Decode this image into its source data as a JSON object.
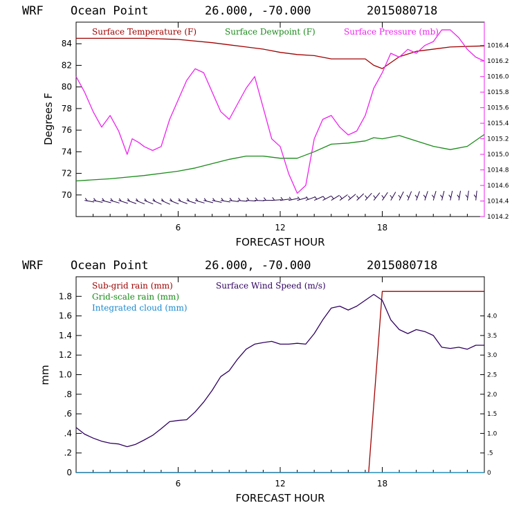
{
  "chart_data": [
    {
      "type": "line",
      "header": {
        "model": "WRF",
        "location": "Ocean Point",
        "coords": "26.000, -70.000",
        "run": "2015080718"
      },
      "xlabel": "FORECAST HOUR",
      "ylabel": "Degrees F",
      "xlim": [
        0,
        24
      ],
      "ylim": [
        68,
        86
      ],
      "y2lim": [
        1014.2,
        1016.7
      ],
      "x_ticks": [
        "6",
        "12",
        "18"
      ],
      "x_tick_values": [
        6,
        12,
        18
      ],
      "y_ticks": [
        "84",
        "82",
        "80",
        "78",
        "76",
        "74",
        "72",
        "70"
      ],
      "y_tick_values": [
        84,
        82,
        80,
        78,
        76,
        74,
        72,
        70
      ],
      "y2_ticks": [
        "1016.4",
        "1016.2",
        "1016.0",
        "1015.8",
        "1015.6",
        "1015.4",
        "1015.2",
        "1015.0",
        "1014.8",
        "1014.6",
        "1014.4",
        "1014.2"
      ],
      "y2_tick_values": [
        1016.4,
        1016.2,
        1016.0,
        1015.8,
        1015.6,
        1015.4,
        1015.2,
        1015.0,
        1014.8,
        1014.6,
        1014.4,
        1014.2
      ],
      "legend": [
        "Surface Temperature (F)",
        "Surface Dewpoint (F)",
        "Surface Pressure (mb)"
      ],
      "colors": {
        "temperature": "#a00000",
        "dewpoint": "#1a8a1a",
        "pressure": "#ee22ee",
        "barbs": "#20004a"
      },
      "series": [
        {
          "name": "Surface Temperature (F)",
          "axis": "left",
          "x": [
            0,
            2,
            4,
            6,
            8,
            9,
            10,
            11,
            12,
            13,
            14,
            15,
            16,
            17,
            17.5,
            18,
            19,
            20,
            22,
            24
          ],
          "values": [
            84.5,
            84.5,
            84.5,
            84.4,
            84.1,
            83.9,
            83.7,
            83.5,
            83.2,
            83.0,
            82.9,
            82.6,
            82.6,
            82.6,
            82.0,
            81.7,
            82.8,
            83.3,
            83.7,
            83.8
          ]
        },
        {
          "name": "Surface Dewpoint (F)",
          "axis": "left",
          "x": [
            0,
            1,
            2,
            4,
            6,
            7,
            8,
            9,
            10,
            11,
            12,
            13,
            14,
            15,
            16,
            17,
            17.5,
            18,
            19,
            20,
            21,
            22,
            23,
            24
          ],
          "values": [
            71.3,
            71.4,
            71.5,
            71.8,
            72.2,
            72.5,
            72.9,
            73.3,
            73.6,
            73.6,
            73.4,
            73.4,
            74.0,
            74.7,
            74.8,
            75.0,
            75.3,
            75.2,
            75.5,
            75.0,
            74.5,
            74.2,
            74.5,
            75.6
          ]
        },
        {
          "name": "Surface Pressure (mb)",
          "axis": "right",
          "x": [
            0,
            0.5,
            1,
            1.5,
            2,
            2.5,
            3,
            3.3,
            3.7,
            4,
            4.5,
            5,
            5.5,
            6,
            6.5,
            7,
            7.5,
            8,
            8.5,
            9,
            9.5,
            10,
            10.5,
            11,
            11.5,
            12,
            12.5,
            13,
            13.5,
            14,
            14.5,
            15,
            15.5,
            16,
            16.5,
            17,
            17.5,
            18,
            18.5,
            19,
            19.5,
            20,
            20.5,
            21,
            21.5,
            22,
            22.5,
            23,
            23.5,
            24
          ],
          "values": [
            1016.0,
            1015.8,
            1015.55,
            1015.35,
            1015.5,
            1015.3,
            1015.0,
            1015.2,
            1015.15,
            1015.1,
            1015.05,
            1015.1,
            1015.45,
            1015.7,
            1015.95,
            1016.1,
            1016.05,
            1015.8,
            1015.55,
            1015.45,
            1015.65,
            1015.85,
            1016.0,
            1015.6,
            1015.2,
            1015.1,
            1014.75,
            1014.5,
            1014.6,
            1015.2,
            1015.45,
            1015.5,
            1015.35,
            1015.25,
            1015.3,
            1015.5,
            1015.85,
            1016.05,
            1016.3,
            1016.25,
            1016.35,
            1016.3,
            1016.4,
            1016.45,
            1016.6,
            1016.6,
            1016.5,
            1016.35,
            1016.25,
            1016.2
          ]
        }
      ],
      "wind_barbs": {
        "start_hour": 0.5,
        "step_hours": 0.5,
        "level_f": 69.5,
        "angles_deg": [
          10,
          12,
          14,
          16,
          18,
          20,
          22,
          22,
          24,
          24,
          22,
          20,
          18,
          16,
          14,
          12,
          10,
          8,
          6,
          4,
          2,
          0,
          -4,
          -8,
          -12,
          -16,
          -20,
          -24,
          -28,
          -32,
          -36,
          -40,
          -44,
          -48,
          -52,
          -56,
          -60,
          -64,
          -68,
          -70,
          -72,
          -74,
          -76,
          -78,
          -80,
          -82,
          -84
        ]
      }
    },
    {
      "type": "line",
      "header": {
        "model": "WRF",
        "location": "Ocean Point",
        "coords": "26.000, -70.000",
        "run": "2015080718"
      },
      "xlabel": "FORECAST HOUR",
      "ylabel": "mm",
      "xlim": [
        0,
        24
      ],
      "ylim": [
        0,
        2.0
      ],
      "y2lim": [
        0,
        5.0
      ],
      "x_ticks": [
        "6",
        "12",
        "18"
      ],
      "x_tick_values": [
        6,
        12,
        18
      ],
      "y_ticks": [
        "1.8",
        "1.6",
        "1.4",
        "1.2",
        "1.0",
        ".8",
        ".6",
        ".4",
        ".2",
        "0"
      ],
      "y_tick_values": [
        1.8,
        1.6,
        1.4,
        1.2,
        1.0,
        0.8,
        0.6,
        0.4,
        0.2,
        0
      ],
      "y2_ticks": [
        "4.0",
        "3.5",
        "3.0",
        "2.5",
        "2.0",
        "1.5",
        "1.0",
        ".5",
        "0"
      ],
      "y2_tick_values": [
        4.0,
        3.5,
        3.0,
        2.5,
        2.0,
        1.5,
        1.0,
        0.5,
        0
      ],
      "legend": [
        "Sub-grid rain (mm)",
        "Surface Wind Speed (m/s)",
        "Grid-scale rain (mm)",
        "Integrated cloud (mm)"
      ],
      "colors": {
        "subgrid": "#a00000",
        "wind": "#300060",
        "gridscale": "#1a8a1a",
        "cloud": "#1a8ad0"
      },
      "series": [
        {
          "name": "Sub-grid rain (mm)",
          "axis": "left",
          "x": [
            0,
            17.2,
            18.0,
            24
          ],
          "values": [
            0,
            0,
            1.85,
            1.85
          ]
        },
        {
          "name": "Grid-scale rain (mm)",
          "axis": "left",
          "x": [
            0,
            24
          ],
          "values": [
            0,
            0
          ]
        },
        {
          "name": "Integrated cloud (mm)",
          "axis": "left",
          "x": [
            0,
            24
          ],
          "values": [
            0,
            0
          ]
        },
        {
          "name": "Surface Wind Speed (m/s)",
          "axis": "right",
          "x": [
            0,
            0.5,
            1,
            1.5,
            2,
            2.5,
            3,
            3.5,
            4,
            4.5,
            5,
            5.5,
            6,
            6.5,
            7,
            7.5,
            8,
            8.5,
            9,
            9.5,
            10,
            10.5,
            11,
            11.5,
            12,
            12.5,
            13,
            13.5,
            14,
            14.5,
            15,
            15.5,
            16,
            16.5,
            17,
            17.5,
            18,
            18.5,
            19,
            19.5,
            20,
            20.5,
            21,
            21.5,
            22,
            22.5,
            23,
            23.5,
            24
          ],
          "values": [
            1.15,
            0.98,
            0.88,
            0.8,
            0.75,
            0.73,
            0.66,
            0.72,
            0.83,
            0.95,
            1.12,
            1.3,
            1.33,
            1.35,
            1.55,
            1.8,
            2.1,
            2.45,
            2.6,
            2.9,
            3.15,
            3.28,
            3.32,
            3.35,
            3.28,
            3.28,
            3.3,
            3.28,
            3.55,
            3.9,
            4.2,
            4.25,
            4.15,
            4.25,
            4.4,
            4.55,
            4.4,
            3.9,
            3.65,
            3.55,
            3.65,
            3.6,
            3.5,
            3.2,
            3.17,
            3.2,
            3.15,
            3.25,
            3.25
          ]
        }
      ]
    }
  ]
}
